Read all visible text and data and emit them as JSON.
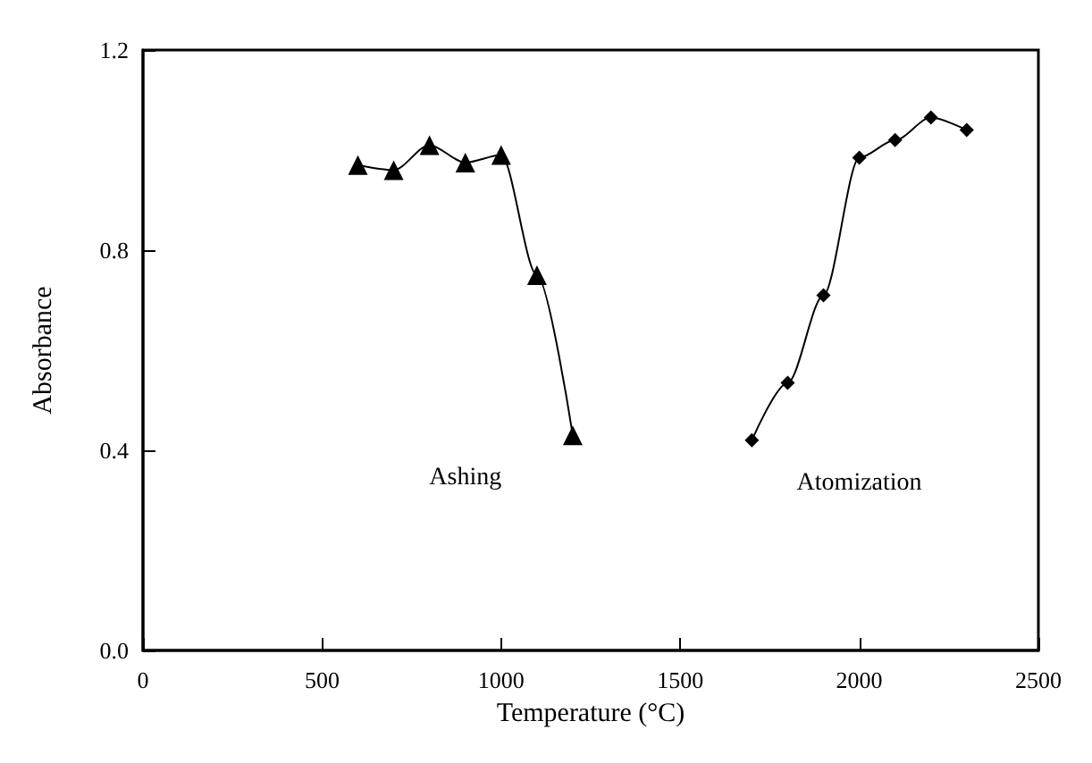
{
  "chart_data": {
    "type": "line",
    "xlabel": "Temperature (°C)",
    "ylabel": "Absorbance",
    "xlim": [
      0,
      2500
    ],
    "xticks": [
      0,
      500,
      1000,
      1500,
      2000,
      2500
    ],
    "ylim": [
      0,
      1.2
    ],
    "yticks": [
      {
        "value": 0,
        "label": "0.0"
      },
      0.4,
      0.8,
      1.2
    ],
    "grid": false,
    "legend": false,
    "line_style": "solid",
    "series": [
      {
        "name": "Ashing",
        "color": "#000000",
        "marker": "triangle",
        "x": [
          600,
          700,
          800,
          900,
          1000,
          1100,
          1200
        ],
        "values": [
          0.97,
          0.96,
          1.01,
          0.975,
          0.99,
          0.75,
          0.43
        ]
      },
      {
        "name": "Atomization",
        "color": "#000000",
        "marker": "diamond",
        "x": [
          1700,
          1800,
          1900,
          2000,
          2100,
          2200,
          2300
        ],
        "values": [
          0.42,
          0.535,
          0.71,
          0.985,
          1.02,
          1.065,
          1.04
        ]
      }
    ]
  }
}
